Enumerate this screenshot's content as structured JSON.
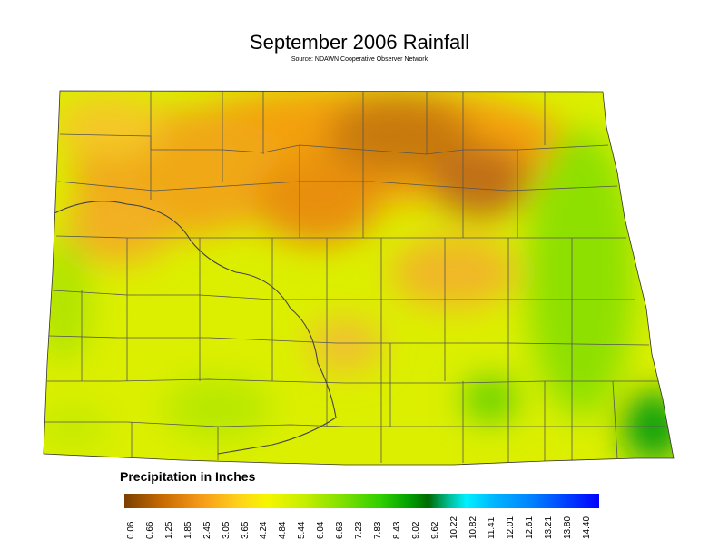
{
  "title": "September 2006 Rainfall",
  "subtitle": "Source: NDAWN Cooperative Observer Network",
  "legend": {
    "title": "Precipitation in Inches",
    "ticks": [
      "0.06",
      "0.66",
      "1.25",
      "1.85",
      "2.45",
      "3.05",
      "3.65",
      "4.24",
      "4.84",
      "5.44",
      "6.04",
      "6.63",
      "7.23",
      "7.83",
      "8.43",
      "9.02",
      "9.62",
      "10.22",
      "10.82",
      "11.41",
      "12.01",
      "12.61",
      "13.21",
      "13.80",
      "14.40"
    ],
    "colors": [
      "#7a3f00",
      "#c86a00",
      "#f59a1a",
      "#ffd21a",
      "#f6f600",
      "#c6ee00",
      "#7ee000",
      "#2fcf00",
      "#00a000",
      "#006a00",
      "#00f0ff",
      "#0080ff",
      "#0000ff"
    ]
  }
}
